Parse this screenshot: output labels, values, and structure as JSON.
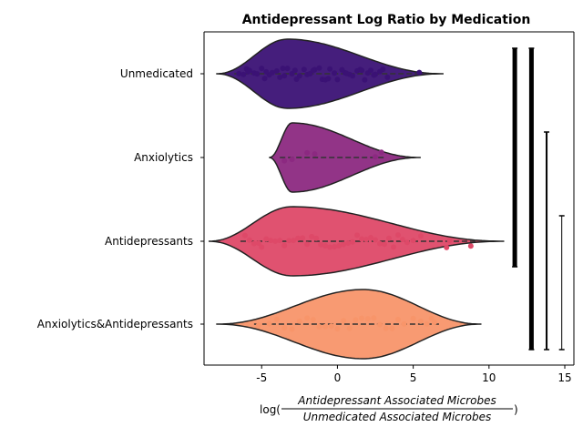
{
  "chart_data": {
    "type": "violin",
    "title": "Antidepressant Log Ratio by Medication",
    "xlabel": {
      "prefix": "log(",
      "numerator": "Antidepressant Associated Microbes",
      "denominator": "Unmedicated Associated Microbes",
      "suffix": ")"
    },
    "xlim": [
      -8.8,
      15.6
    ],
    "xticks": [
      -5,
      0,
      5,
      10,
      15
    ],
    "categories": [
      "Unmedicated",
      "Anxiolytics",
      "Antidepressants",
      "Anxiolytics&Antidepressants"
    ],
    "series": [
      {
        "category": "Unmedicated",
        "color": "#3b1275",
        "range": [
          -8.0,
          7.0
        ],
        "mode": -3.3,
        "points": [
          -6.5,
          -6.2,
          -6.0,
          -5.8,
          -5.5,
          -5.3,
          -5.0,
          -4.8,
          -4.5,
          -4.3,
          -4.0,
          -3.8,
          -3.5,
          -3.3,
          -3.0,
          -2.8,
          -2.5,
          -2.2,
          -2.0,
          -1.8,
          -1.5,
          -1.2,
          -1.0,
          -0.8,
          -0.5,
          -0.2,
          0.0,
          0.3,
          0.5,
          0.8,
          1.0,
          1.3,
          1.5,
          1.8,
          2.0,
          2.2,
          2.5,
          2.8,
          3.0,
          3.3,
          -5.9,
          -4.7,
          -3.6,
          -2.7,
          -1.6,
          -0.6,
          0.6,
          1.6,
          2.4,
          5.4
        ]
      },
      {
        "category": "Anxiolytics",
        "color": "#8c2981",
        "range": [
          -4.5,
          5.5
        ],
        "mode": -3.0,
        "points": [
          -3.5,
          -3.0,
          -2.0,
          -1.5,
          2.5,
          2.9
        ]
      },
      {
        "category": "Antidepressants",
        "color": "#de4968",
        "range": [
          -8.5,
          11.0
        ],
        "mode": -3.0,
        "points": [
          -6.1,
          -5.8,
          -5.5,
          -5.2,
          -5.0,
          -4.7,
          -4.4,
          -4.1,
          -3.8,
          -3.5,
          -3.2,
          -2.9,
          -2.6,
          -2.3,
          -2.0,
          -1.7,
          -1.4,
          -1.1,
          -0.8,
          -0.5,
          -0.2,
          0.1,
          0.4,
          0.7,
          1.0,
          1.3,
          1.6,
          1.9,
          2.2,
          2.5,
          2.8,
          3.1,
          3.4,
          3.7,
          4.0,
          4.3,
          4.6,
          5.0,
          5.5,
          7.2,
          7.4,
          8.8
        ]
      },
      {
        "category": "Anxiolytics&Antidepressants",
        "color": "#f8956a",
        "range": [
          -8.0,
          9.5
        ],
        "mode": 1.7,
        "points": [
          -5.2,
          -4.5,
          -4.0,
          -3.5,
          -3.0,
          -2.5,
          -2.0,
          -1.6,
          -1.2,
          -0.8,
          -0.4,
          0.0,
          0.4,
          0.8,
          1.2,
          1.6,
          2.0,
          2.4,
          2.8,
          3.2,
          3.6,
          4.0,
          4.4,
          5.0,
          5.5,
          5.9,
          6.2,
          6.4
        ]
      }
    ],
    "significance_brackets": [
      {
        "from": "Unmedicated",
        "to": "Antidepressants",
        "x": 11.7,
        "weight": "heavy"
      },
      {
        "from": "Unmedicated",
        "to": "Anxiolytics&Antidepressants",
        "x": 12.8,
        "weight": "heavy"
      },
      {
        "from": "Anxiolytics",
        "to": "Anxiolytics&Antidepressants",
        "x": 13.8,
        "weight": "medium"
      },
      {
        "from": "Antidepressants",
        "to": "Anxiolytics&Antidepressants",
        "x": 14.8,
        "weight": "thin"
      }
    ],
    "grid": false,
    "legend": "none"
  }
}
